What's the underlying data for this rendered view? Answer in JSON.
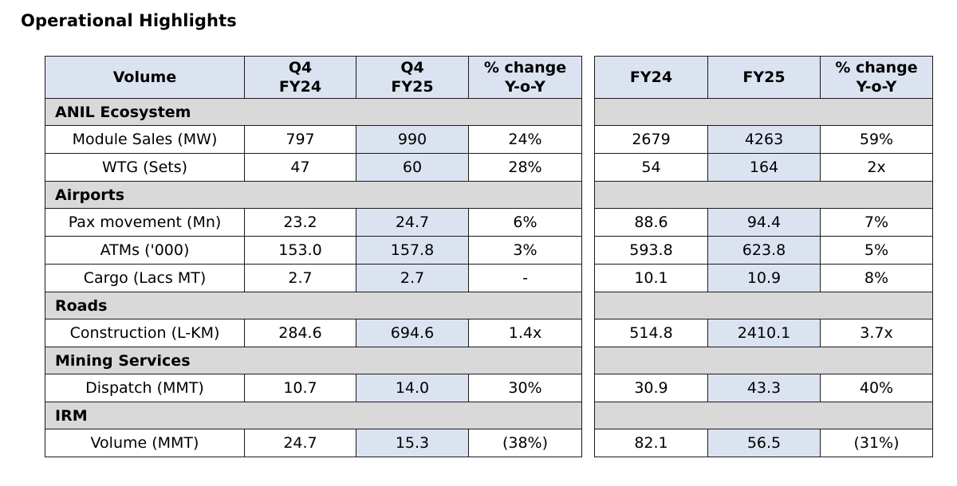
{
  "title": "Operational Highlights",
  "headers": {
    "volume": "Volume",
    "q4fy24_l1": "Q4",
    "q4fy24_l2": "FY24",
    "q4fy25_l1": "Q4",
    "q4fy25_l2": "FY25",
    "chg_l1": "% change",
    "chg_l2": "Y-o-Y",
    "fy24": "FY24",
    "fy25": "FY25",
    "chg2_l1": "% change",
    "chg2_l2": "Y-o-Y"
  },
  "rows": [
    {
      "section": "ANIL Ecosystem"
    },
    {
      "label": "Module Sales (MW)",
      "q4fy24": "797",
      "q4fy25": "990",
      "qchg": "24%",
      "fy24": "2679",
      "fy25": "4263",
      "fychg": "59%"
    },
    {
      "label": "WTG (Sets)",
      "q4fy24": "47",
      "q4fy25": "60",
      "qchg": "28%",
      "fy24": "54",
      "fy25": "164",
      "fychg": "2x"
    },
    {
      "section": "Airports"
    },
    {
      "label": "Pax movement (Mn)",
      "q4fy24": "23.2",
      "q4fy25": "24.7",
      "qchg": "6%",
      "fy24": "88.6",
      "fy25": "94.4",
      "fychg": "7%"
    },
    {
      "label": "ATMs ('000)",
      "q4fy24": "153.0",
      "q4fy25": "157.8",
      "qchg": "3%",
      "fy24": "593.8",
      "fy25": "623.8",
      "fychg": "5%"
    },
    {
      "label": "Cargo (Lacs MT)",
      "q4fy24": "2.7",
      "q4fy25": "2.7",
      "qchg": "-",
      "fy24": "10.1",
      "fy25": "10.9",
      "fychg": "8%"
    },
    {
      "section": "Roads"
    },
    {
      "label": "Construction (L-KM)",
      "q4fy24": "284.6",
      "q4fy25": "694.6",
      "qchg": "1.4x",
      "fy24": "514.8",
      "fy25": "2410.1",
      "fychg": "3.7x"
    },
    {
      "section": "Mining Services"
    },
    {
      "label": "Dispatch (MMT)",
      "q4fy24": "10.7",
      "q4fy25": "14.0",
      "qchg": "30%",
      "fy24": "30.9",
      "fy25": "43.3",
      "fychg": "40%"
    },
    {
      "section": "IRM"
    },
    {
      "label": "Volume (MMT)",
      "q4fy24": "24.7",
      "q4fy25": "15.3",
      "qchg": "(38%)",
      "fy24": "82.1",
      "fy25": "56.5",
      "fychg": "(31%)"
    }
  ]
}
